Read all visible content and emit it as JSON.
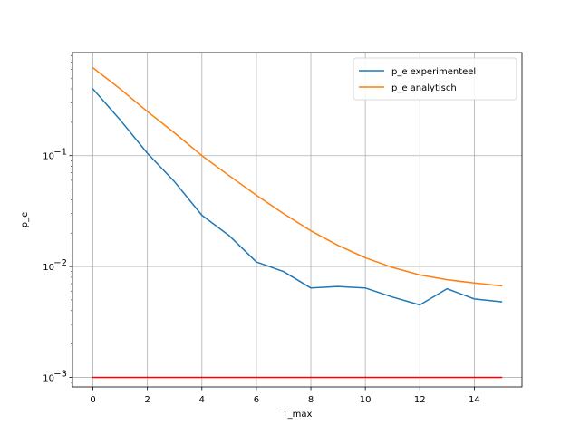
{
  "chart_data": {
    "type": "line",
    "title": "",
    "xlabel": "T_max",
    "ylabel": "p_e",
    "yscale": "log",
    "xlim": [
      -0.75,
      15.75
    ],
    "ylim": [
      0.00082,
      0.85
    ],
    "grid": true,
    "legend_position": "top-right",
    "x": [
      0,
      1,
      2,
      3,
      4,
      5,
      6,
      7,
      8,
      9,
      10,
      11,
      12,
      13,
      14,
      15
    ],
    "x_ticks": [
      0,
      2,
      4,
      6,
      8,
      10,
      12,
      14
    ],
    "y_ticks": [
      {
        "value": 0.001,
        "base": "10",
        "exp": "−3"
      },
      {
        "value": 0.01,
        "base": "10",
        "exp": "−2"
      },
      {
        "value": 0.1,
        "base": "10",
        "exp": "−1"
      }
    ],
    "series": [
      {
        "name": "p_e experimenteel",
        "color": "#1f77b4",
        "legend": true,
        "values": [
          0.4,
          0.21,
          0.105,
          0.058,
          0.029,
          0.019,
          0.011,
          0.009,
          0.0064,
          0.0066,
          0.0064,
          0.0053,
          0.0045,
          0.0063,
          0.0051,
          0.0048
        ]
      },
      {
        "name": "p_e analytisch",
        "color": "#ff7f0e",
        "legend": true,
        "values": [
          0.62,
          0.4,
          0.25,
          0.16,
          0.1,
          0.066,
          0.044,
          0.03,
          0.021,
          0.0155,
          0.012,
          0.0098,
          0.0084,
          0.0076,
          0.0071,
          0.0067
        ]
      },
      {
        "color": "#ff0000",
        "legend": false,
        "values": [
          0.001,
          0.001,
          0.001,
          0.001,
          0.001,
          0.001,
          0.001,
          0.001,
          0.001,
          0.001,
          0.001,
          0.001,
          0.001,
          0.001,
          0.001,
          0.001
        ]
      }
    ]
  }
}
